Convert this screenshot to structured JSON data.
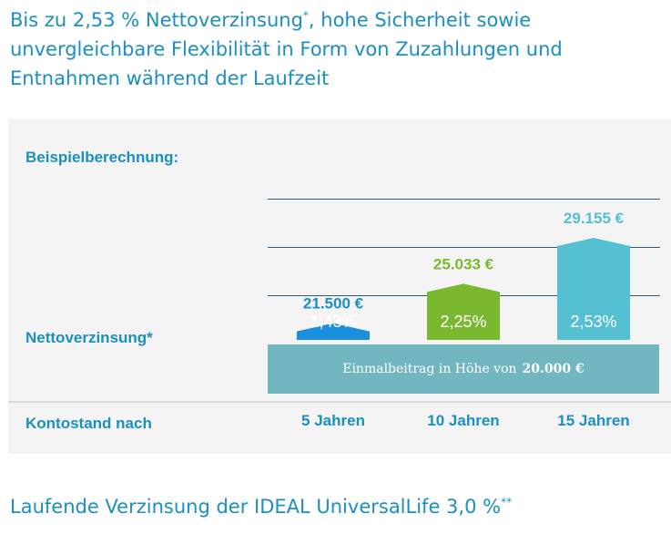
{
  "headline": {
    "line1": "Bis zu 2,53 % Nettoverzinsung",
    "star": "*",
    "line1_rest": ", hohe Sicherheit sowie",
    "line2": "unvergleichbare Flexibilität in Form von Zuzahlungen und",
    "line3": "Entnahmen während der Laufzeit"
  },
  "panel": {
    "heading": "Beispielberechnung:",
    "rate_label": "Nettoverzinsung*",
    "account_label": "Kontostand nach",
    "base_text": "Einmalbeitrag in Höhe von",
    "base_amount": "20.000 €"
  },
  "chart_data": {
    "type": "bar",
    "categories": [
      "5 Jahren",
      "10 Jahren",
      "15 Jahren"
    ],
    "values": [
      21500,
      25033,
      29155
    ],
    "value_labels": [
      "21.500 €",
      "25.033 €",
      "29.155 €"
    ],
    "rate_labels": [
      "1,43%",
      "2,25%",
      "2,53%"
    ],
    "colors": [
      "#1a8fde",
      "#79b82f",
      "#54c0d1"
    ],
    "label_colors": [
      "#1a8fc4",
      "#79b82f",
      "#54c0d1"
    ],
    "base_value": 20000,
    "xlabel": "Kontostand nach",
    "ylabel": "Nettoverzinsung*"
  },
  "footer": {
    "title": "Laufende Verzinsung der IDEAL UniversalLife 3,0 %",
    "stars": "**"
  }
}
